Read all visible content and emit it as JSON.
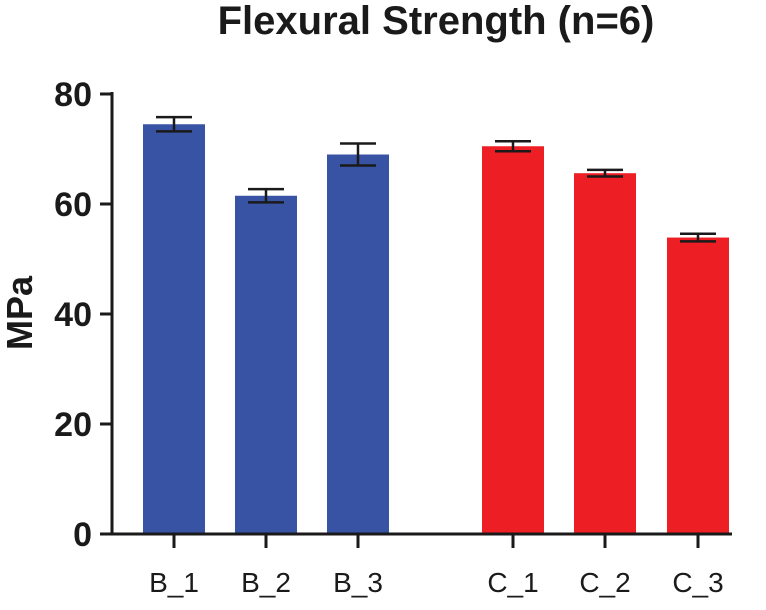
{
  "chart_data": {
    "type": "bar",
    "title": "Flexural Strength (n=6)",
    "xlabel": "",
    "ylabel": "MPa",
    "ylim": [
      0,
      80
    ],
    "yticks": [
      "0",
      "20",
      "40",
      "60",
      "80"
    ],
    "grid": false,
    "legend": "none",
    "categories": [
      "B_1",
      "B_2",
      "B_3",
      "C_1",
      "C_2",
      "C_3"
    ],
    "values": [
      74.5,
      61.5,
      69.0,
      70.5,
      65.6,
      53.9
    ],
    "error": [
      1.3,
      1.2,
      2.0,
      0.9,
      0.6,
      0.7
    ],
    "group": [
      "B",
      "B",
      "B",
      "C",
      "C",
      "C"
    ],
    "colors": {
      "B": "#3853a4",
      "C": "#ed1f24",
      "axis": "#1a1a1a",
      "text": "#1a1a1a"
    }
  }
}
